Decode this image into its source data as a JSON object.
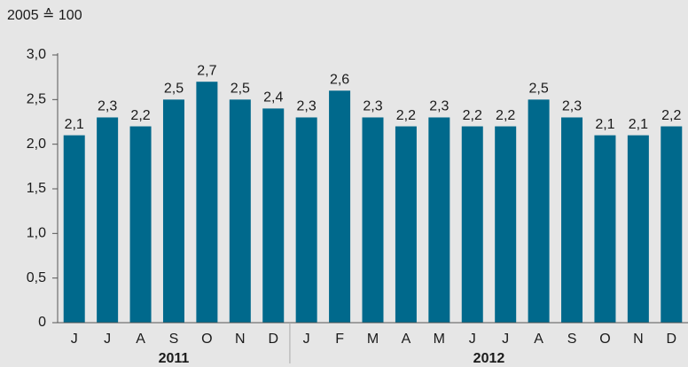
{
  "chart_data": {
    "type": "bar",
    "subtitle": "2005 ≙ 100",
    "categories": [
      "J",
      "J",
      "A",
      "S",
      "O",
      "N",
      "D",
      "J",
      "F",
      "M",
      "A",
      "M",
      "J",
      "J",
      "A",
      "S",
      "O",
      "N",
      "D"
    ],
    "values": [
      2.1,
      2.3,
      2.2,
      2.5,
      2.7,
      2.5,
      2.4,
      2.3,
      2.6,
      2.3,
      2.2,
      2.3,
      2.2,
      2.2,
      2.5,
      2.3,
      2.1,
      2.1,
      2.2
    ],
    "value_labels": [
      "2,1",
      "2,3",
      "2,2",
      "2,5",
      "2,7",
      "2,5",
      "2,4",
      "2,3",
      "2,6",
      "2,3",
      "2,2",
      "2,3",
      "2,2",
      "2,2",
      "2,5",
      "2,3",
      "2,1",
      "2,1",
      "2,2"
    ],
    "groups": [
      {
        "name": "2011",
        "first": 0,
        "last": 6
      },
      {
        "name": "2012",
        "first": 7,
        "last": 18
      }
    ],
    "color": "#00698c",
    "ylim": [
      0,
      3
    ],
    "yticks": [
      0,
      {
        "value": 0.5,
        "label": "0,5"
      },
      {
        "value": 1,
        "label": "1,0"
      },
      {
        "value": 1.5,
        "label": "1,5"
      },
      {
        "value": 2,
        "label": "2,0"
      },
      {
        "value": 2.5,
        "label": "2,5"
      },
      {
        "value": 3,
        "label": "3,0"
      }
    ]
  }
}
